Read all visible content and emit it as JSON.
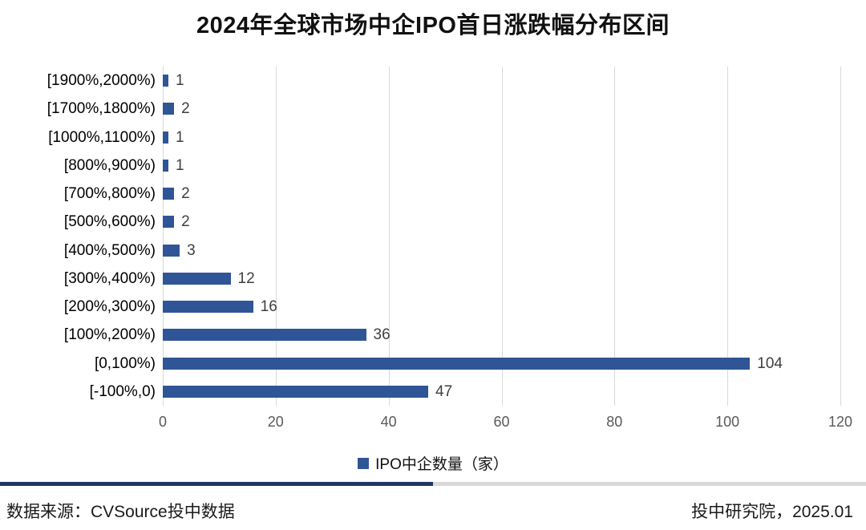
{
  "title": "2024年全球市场中企IPO首日涨跌幅分布区间",
  "chart_data": {
    "type": "bar",
    "orientation": "horizontal",
    "title": "2024年全球市场中企IPO首日涨跌幅分布区间",
    "series_name": "IPO中企数量（家）",
    "categories": [
      "[1900%,2000%)",
      "[1700%,1800%)",
      "[1000%,1100%)",
      "[800%,900%)",
      "[700%,800%)",
      "[500%,600%)",
      "[400%,500%)",
      "[300%,400%)",
      "[200%,300%)",
      "[100%,200%)",
      "[0,100%)",
      "[-100%,0)"
    ],
    "values": [
      1,
      2,
      1,
      1,
      2,
      2,
      3,
      12,
      16,
      36,
      104,
      47
    ],
    "xlabel": "",
    "ylabel": "",
    "xlim": [
      0,
      120
    ],
    "x_ticks": [
      0,
      20,
      40,
      60,
      80,
      100,
      120
    ],
    "grid": "vertical-only",
    "legend_position": "bottom",
    "bar_color": "#2f5597",
    "gridline_color": "#d9d9d9"
  },
  "legend": {
    "marker": "square-icon",
    "marker_color": "#2f5597",
    "label": "IPO中企数量（家）"
  },
  "footer": {
    "source": "数据来源：CVSource投中数据",
    "credit": "投中研究院，2025.01"
  },
  "colors": {
    "bar": "#2f5597",
    "divider_accent": "#1f3864",
    "divider_rest": "#d9d9d9",
    "axis_text": "#595959",
    "value_text": "#3f3f3f"
  }
}
